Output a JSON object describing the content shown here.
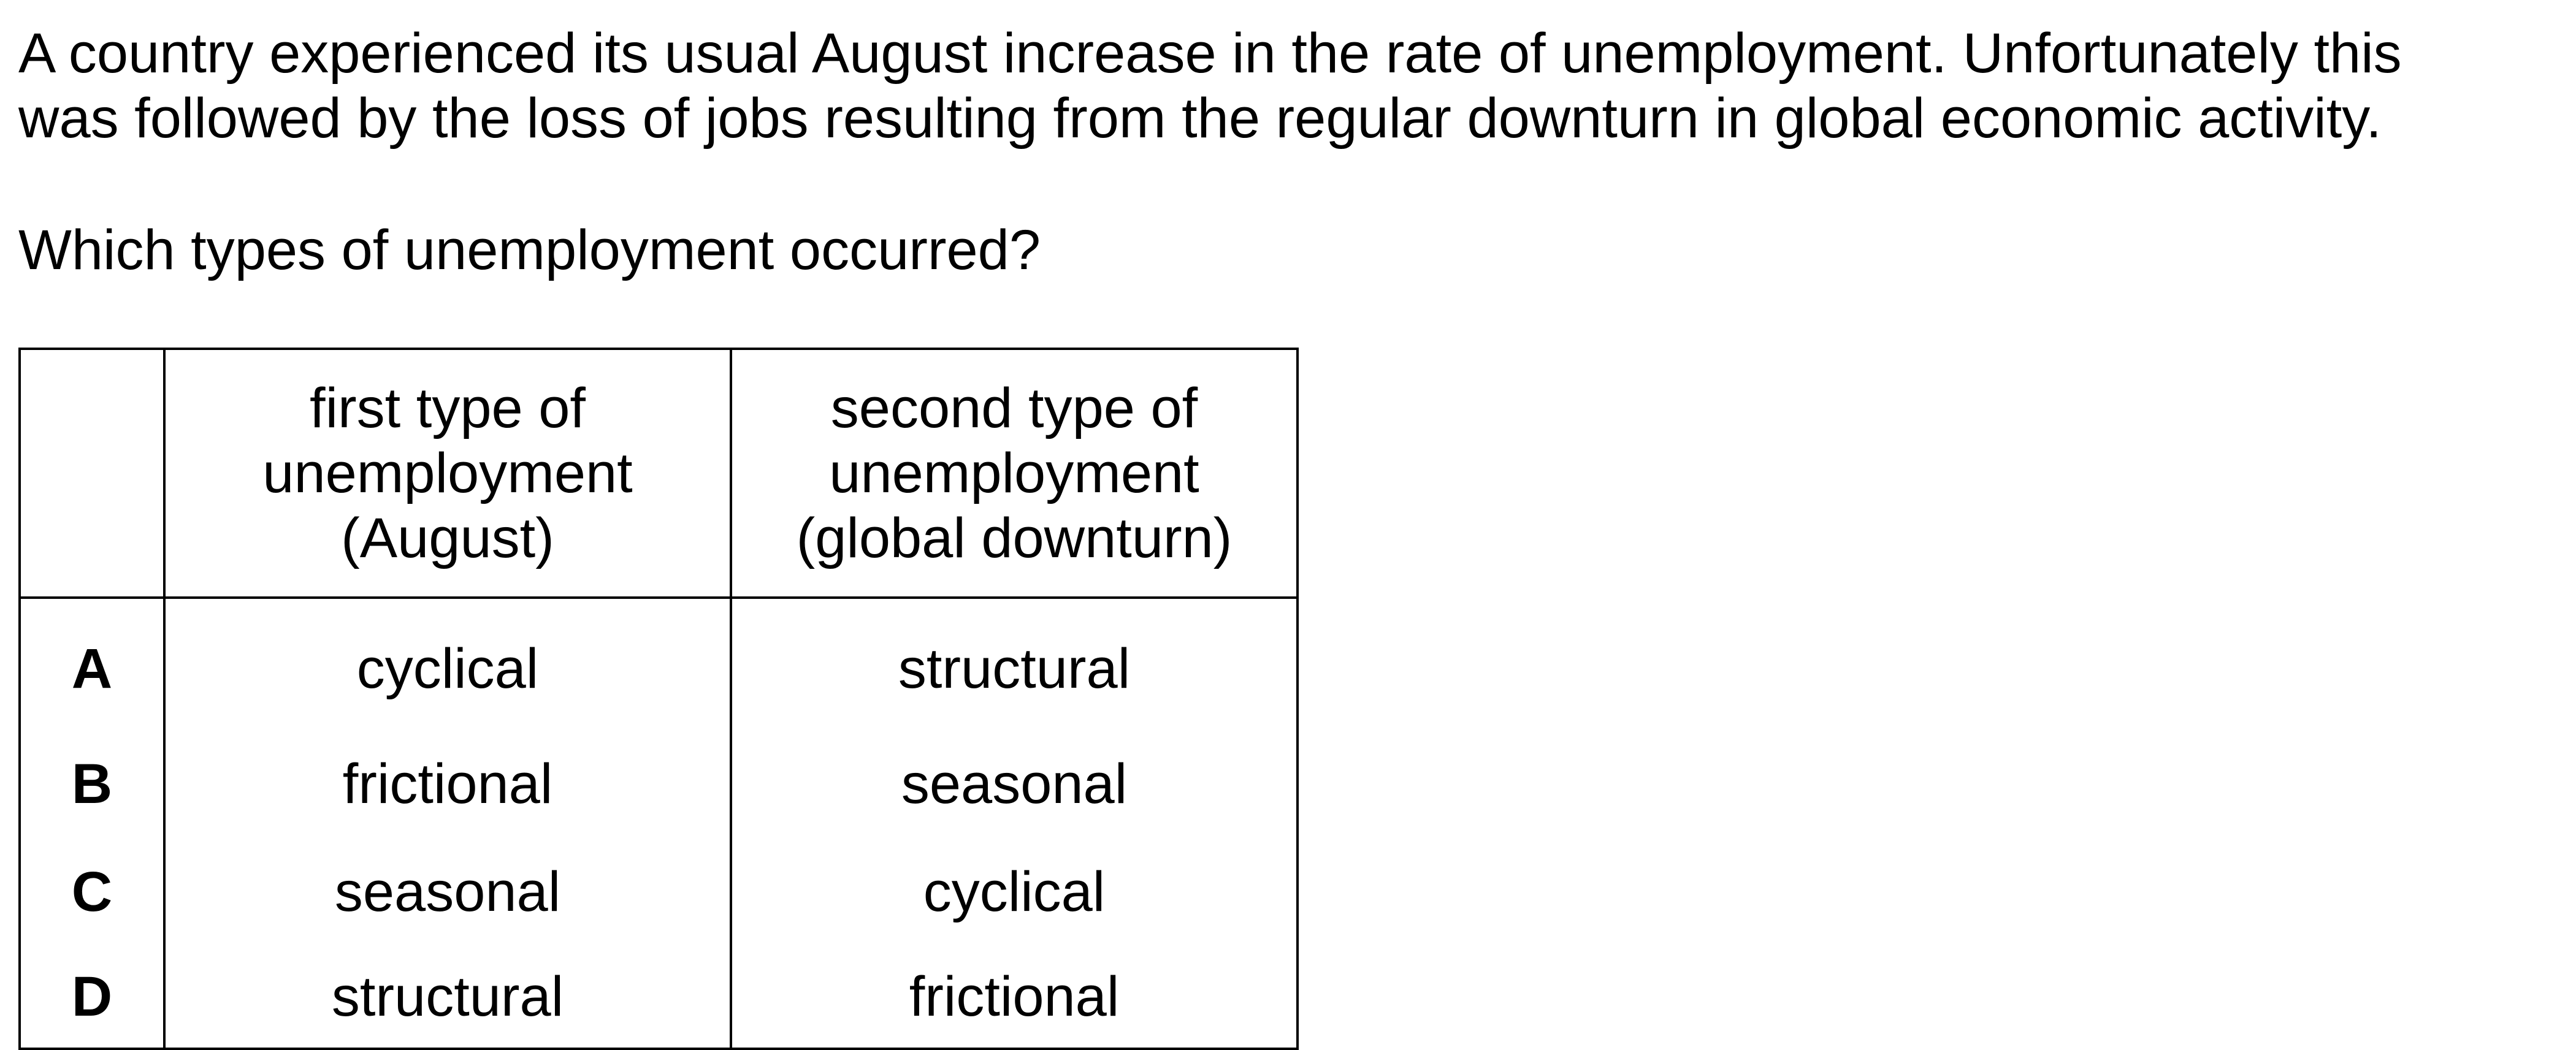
{
  "stem": {
    "line1": "A country experienced its usual August increase in the rate of unemployment. Unfortunately this",
    "line2": "was followed by the loss of jobs resulting from the regular downturn in global economic activity."
  },
  "question": "Which types of unemployment occurred?",
  "table": {
    "header": {
      "first": [
        "first type of",
        "unemployment",
        "(August)"
      ],
      "second": [
        "second type of",
        "unemployment",
        "(global downturn)"
      ]
    },
    "rows": [
      {
        "key": "A",
        "first": "cyclical",
        "second": "structural"
      },
      {
        "key": "B",
        "first": "frictional",
        "second": "seasonal"
      },
      {
        "key": "C",
        "first": "seasonal",
        "second": "cyclical"
      },
      {
        "key": "D",
        "first": "structural",
        "second": "frictional"
      }
    ]
  }
}
